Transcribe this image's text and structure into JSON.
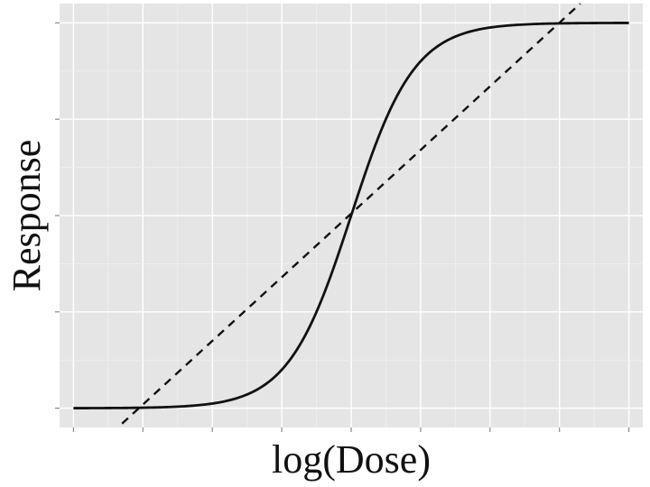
{
  "chart_data": {
    "type": "line",
    "title": "",
    "xlabel": "log(Dose)",
    "ylabel": "Response",
    "xlim": [
      -4.2,
      4.2
    ],
    "ylim": [
      -0.05,
      1.05
    ],
    "x_tick_labels_shown": false,
    "y_tick_labels_shown": false,
    "grid": true,
    "legend": "none",
    "series": [
      {
        "style": "solid",
        "model": "sigmoid",
        "x": [
          -4.0,
          -3.0,
          -2.0,
          -1.5,
          -1.0,
          -0.5,
          0.0,
          0.5,
          1.0,
          1.5,
          2.0,
          3.0,
          4.0
        ],
        "y": [
          0.0,
          0.0005,
          0.0067,
          0.024,
          0.083,
          0.245,
          0.5,
          0.755,
          0.917,
          0.976,
          0.993,
          0.9995,
          1.0
        ]
      },
      {
        "style": "dashed",
        "model": "linear",
        "x": [
          -3.3,
          3.3
        ],
        "y": [
          -0.04,
          1.05
        ]
      }
    ]
  },
  "colors": {
    "panel": "#e5e5e5",
    "grid_major": "#ffffff",
    "grid_minor": "#f0f0f0",
    "line": "#111111",
    "tick": "#888888"
  }
}
